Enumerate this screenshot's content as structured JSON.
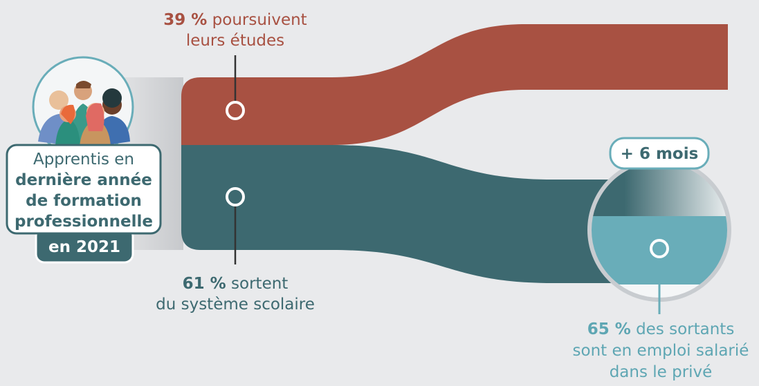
{
  "source": {
    "lines": [
      "Apprentis en",
      "dernière année",
      "de formation",
      "professionnelle"
    ],
    "year": "en 2021"
  },
  "flows": [
    {
      "percent": "39 %",
      "lines": [
        "poursuivent",
        "leurs études"
      ]
    },
    {
      "percent": "61 %",
      "lines": [
        "sortent",
        "du système scolaire"
      ]
    }
  ],
  "badge": "+ 6 mois",
  "outcome": {
    "percent": "65 %",
    "lines": [
      "des sortants",
      "sont en emploi salarié",
      "dans le privé"
    ]
  }
}
